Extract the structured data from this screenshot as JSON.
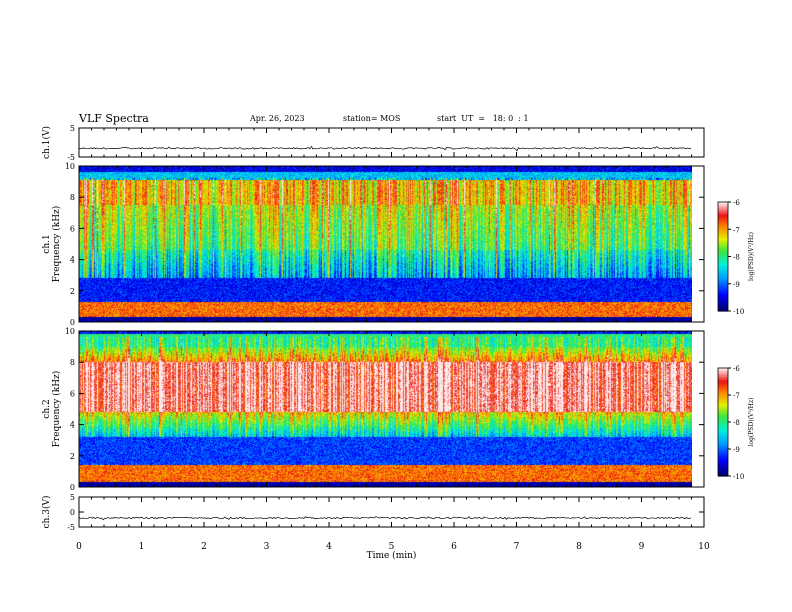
{
  "header": {
    "title": "VLF Spectra",
    "date": "Apr. 26, 2023",
    "station": "station= MOS",
    "start": "start  UT  =   18: 0  : 1"
  },
  "chart_data": [
    {
      "type": "line",
      "name": "ch1-waveform",
      "ylabel": "ch.1(V)",
      "ylim": [
        -5,
        5
      ],
      "yticks": [
        5,
        -5
      ],
      "xlim": [
        0,
        10
      ],
      "level": -2.0
    },
    {
      "type": "heatmap",
      "name": "ch1-spectrogram",
      "ylabel": "ch.1\nFrequency (kHz)",
      "ylim": [
        0,
        10
      ],
      "yticks": [
        0,
        2,
        4,
        6,
        8,
        10
      ],
      "xlim": [
        0,
        10
      ],
      "data_end_min": 9.8,
      "colorbar": {
        "label": "log(PSD)(V²/Hz)",
        "range": [
          -10,
          -6
        ],
        "ticks": [
          -6,
          -7,
          -8,
          -9,
          -10
        ]
      }
    },
    {
      "type": "heatmap",
      "name": "ch2-spectrogram",
      "ylabel": "ch.2\nFrequency (kHz)",
      "ylim": [
        0,
        10
      ],
      "yticks": [
        0,
        2,
        4,
        6,
        8,
        10
      ],
      "xlim": [
        0,
        10
      ],
      "data_end_min": 9.8,
      "colorbar": {
        "label": "log(PSD)(V²/Hz)",
        "range": [
          -10,
          -6
        ],
        "ticks": [
          -6,
          -7,
          -8,
          -9,
          -10
        ]
      }
    },
    {
      "type": "line",
      "name": "ch3-waveform",
      "ylabel": "ch.3(V)",
      "ylim": [
        -5,
        5
      ],
      "yticks": [
        5,
        0,
        -5
      ],
      "xlim": [
        0,
        10
      ],
      "level": -2.0,
      "xlabel": "Time (min)",
      "xticks": [
        0,
        1,
        2,
        3,
        4,
        5,
        6,
        7,
        8,
        9,
        10
      ]
    }
  ],
  "colors": {
    "text": "#000000",
    "background": "#ffffff"
  }
}
